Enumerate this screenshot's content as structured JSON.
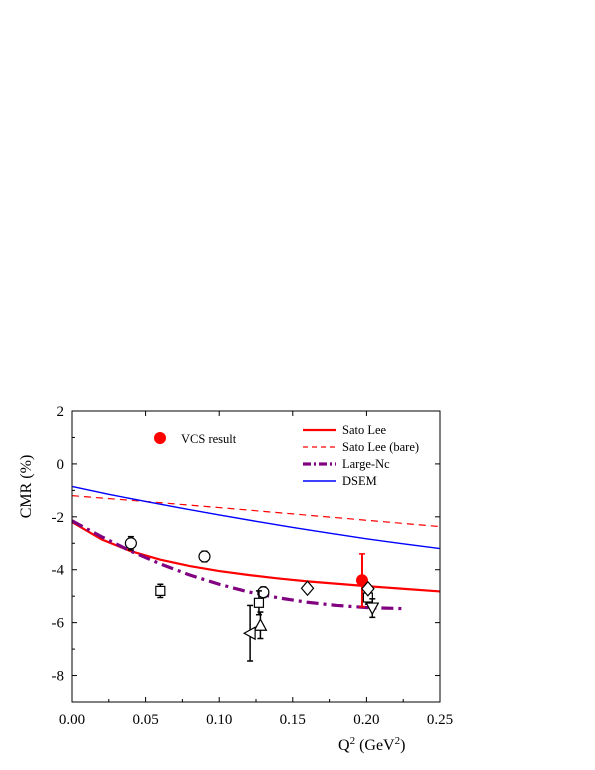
{
  "chart_data": {
    "type": "scatter",
    "xlabel": "Q",
    "xlabel_sup": "2",
    "xlabel_unit": " (GeV",
    "xlabel_unit_sup": "2",
    "xlabel_unit_close": ")",
    "ylabel": "CMR (%)",
    "xlim": [
      0.0,
      0.25
    ],
    "ylim": [
      -9,
      2
    ],
    "xticks": [
      "0.00",
      "0.05",
      "0.10",
      "0.15",
      "0.20",
      "0.25"
    ],
    "xtick_values": [
      0.0,
      0.05,
      0.1,
      0.15,
      0.2,
      0.25
    ],
    "yticks": [
      "2",
      "0",
      "-2",
      "-4",
      "-6",
      "-8"
    ],
    "ytick_values": [
      2,
      0,
      -2,
      -4,
      -6,
      -8
    ],
    "grid": false,
    "legend_position": "top-right",
    "colors": {
      "sato_lee": "#ff0000",
      "sato_lee_bare": "#ff0000",
      "large_nc": "#800080",
      "dsem": "#0000ff",
      "vcs": "#ff0000",
      "data": "#000000"
    },
    "series": [
      {
        "name": "Sato Lee",
        "kind": "line",
        "style": "solid",
        "x": [
          0.0,
          0.02,
          0.04,
          0.06,
          0.08,
          0.1,
          0.12,
          0.14,
          0.16,
          0.18,
          0.2,
          0.22,
          0.25
        ],
        "y": [
          -2.2,
          -2.85,
          -3.3,
          -3.62,
          -3.86,
          -4.05,
          -4.2,
          -4.33,
          -4.44,
          -4.53,
          -4.62,
          -4.7,
          -4.82
        ]
      },
      {
        "name": "Sato Lee (bare)",
        "kind": "line",
        "style": "dashed",
        "x": [
          0.0,
          0.05,
          0.1,
          0.15,
          0.2,
          0.25
        ],
        "y": [
          -1.2,
          -1.42,
          -1.65,
          -1.89,
          -2.13,
          -2.37
        ]
      },
      {
        "name": "Large-Nc",
        "kind": "line",
        "style": "dashdot",
        "x": [
          0.0,
          0.02,
          0.04,
          0.06,
          0.08,
          0.1,
          0.12,
          0.14,
          0.16,
          0.18,
          0.2,
          0.225
        ],
        "y": [
          -2.15,
          -2.75,
          -3.3,
          -3.78,
          -4.2,
          -4.55,
          -4.84,
          -5.06,
          -5.23,
          -5.35,
          -5.43,
          -5.47
        ]
      },
      {
        "name": "DSEM",
        "kind": "line",
        "style": "solid",
        "x": [
          0.0,
          0.025,
          0.05,
          0.075,
          0.1,
          0.125,
          0.15,
          0.175,
          0.2,
          0.225,
          0.25
        ],
        "y": [
          -0.85,
          -1.15,
          -1.42,
          -1.68,
          -1.93,
          -2.17,
          -2.4,
          -2.62,
          -2.83,
          -3.02,
          -3.2
        ]
      },
      {
        "name": "VCS result",
        "kind": "point",
        "marker": "filled-circle",
        "points": [
          {
            "x": 0.197,
            "y": -4.4,
            "err": 1.0
          }
        ]
      },
      {
        "name": "",
        "kind": "point",
        "marker": "open-circle",
        "points": [
          {
            "x": 0.04,
            "y": -3.0,
            "err": 0.25
          },
          {
            "x": 0.09,
            "y": -3.5,
            "err": 0.2
          },
          {
            "x": 0.13,
            "y": -4.85,
            "err": 0.2
          }
        ]
      },
      {
        "name": "",
        "kind": "point",
        "marker": "open-square",
        "points": [
          {
            "x": 0.06,
            "y": -4.8,
            "err": 0.25
          },
          {
            "x": 0.127,
            "y": -5.25,
            "err": 0.45
          },
          {
            "x": 0.201,
            "y": -5.05,
            "err": 0.25
          }
        ]
      },
      {
        "name": "",
        "kind": "point",
        "marker": "open-diamond",
        "points": [
          {
            "x": 0.16,
            "y": -4.7,
            "err": 0.15
          },
          {
            "x": 0.201,
            "y": -4.72,
            "err": 0.15
          }
        ]
      },
      {
        "name": "",
        "kind": "point",
        "marker": "open-triangle-up",
        "points": [
          {
            "x": 0.128,
            "y": -6.1,
            "err": 0.5
          }
        ]
      },
      {
        "name": "",
        "kind": "point",
        "marker": "open-triangle-left",
        "points": [
          {
            "x": 0.121,
            "y": -6.4,
            "err": 1.05
          }
        ]
      },
      {
        "name": "",
        "kind": "point",
        "marker": "open-triangle-down",
        "points": [
          {
            "x": 0.204,
            "y": -5.45,
            "err": 0.35
          }
        ]
      }
    ]
  }
}
